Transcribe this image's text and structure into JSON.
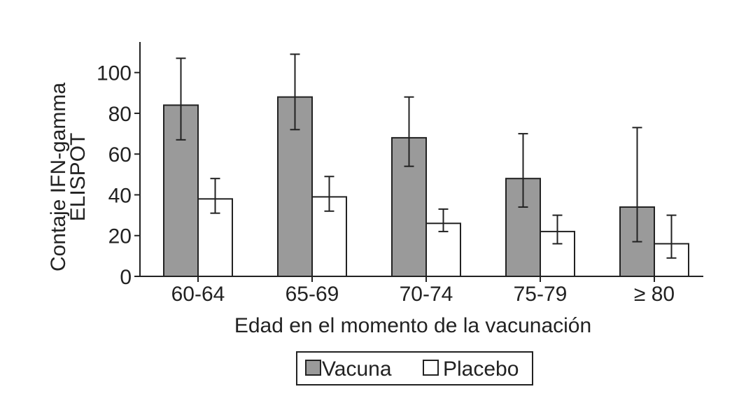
{
  "chart_data": {
    "type": "bar",
    "categories": [
      "60-64",
      "65-69",
      "70-74",
      "75-79",
      "≥ 80"
    ],
    "series": [
      {
        "name": "Vacuna",
        "color": "#9a9a9a",
        "values": [
          84,
          88,
          68,
          48,
          34
        ],
        "error_low": [
          67,
          72,
          54,
          34,
          17
        ],
        "error_high": [
          107,
          109,
          88,
          70,
          73
        ]
      },
      {
        "name": "Placebo",
        "color": "#ffffff",
        "values": [
          38,
          39,
          26,
          22,
          16
        ],
        "error_low": [
          31,
          32,
          22,
          16,
          9
        ],
        "error_high": [
          48,
          49,
          33,
          30,
          30
        ]
      }
    ],
    "xlabel": "Edad en el momento de la vacunación",
    "ylabel_lines": [
      "Contaje IFN-gamma",
      "ELISPOT"
    ],
    "ylim": [
      0,
      115
    ],
    "yticks": [
      "0",
      "20",
      "40",
      "60",
      "80",
      "100"
    ],
    "legend_position": "bottom-center",
    "grid": false
  }
}
